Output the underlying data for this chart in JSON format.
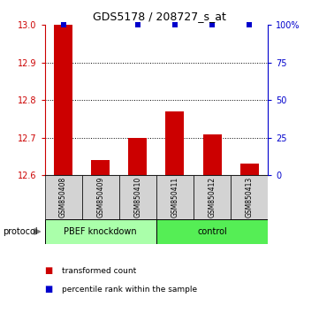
{
  "title": "GDS5178 / 208727_s_at",
  "samples": [
    "GSM850408",
    "GSM850409",
    "GSM850410",
    "GSM850411",
    "GSM850412",
    "GSM850413"
  ],
  "red_values": [
    13.0,
    12.64,
    12.7,
    12.77,
    12.71,
    12.63
  ],
  "blue_percentiles": [
    100,
    null,
    100,
    100,
    100,
    100
  ],
  "ylim_left": [
    12.6,
    13.0
  ],
  "ylim_right": [
    0,
    100
  ],
  "yticks_left": [
    12.6,
    12.7,
    12.8,
    12.9,
    13.0
  ],
  "yticks_right": [
    0,
    25,
    50,
    75,
    100
  ],
  "group1_label": "PBEF knockdown",
  "group2_label": "control",
  "group1_color": "#aaffaa",
  "group2_color": "#55ee55",
  "protocol_label": "protocol",
  "legend_red": "transformed count",
  "legend_blue": "percentile rank within the sample",
  "bar_color": "#cc0000",
  "dot_color": "#0000cc",
  "bg_color": "#ffffff",
  "tick_color_left": "#cc0000",
  "tick_color_right": "#0000cc",
  "bar_width": 0.5,
  "dotted_lines": [
    12.7,
    12.8,
    12.9
  ]
}
